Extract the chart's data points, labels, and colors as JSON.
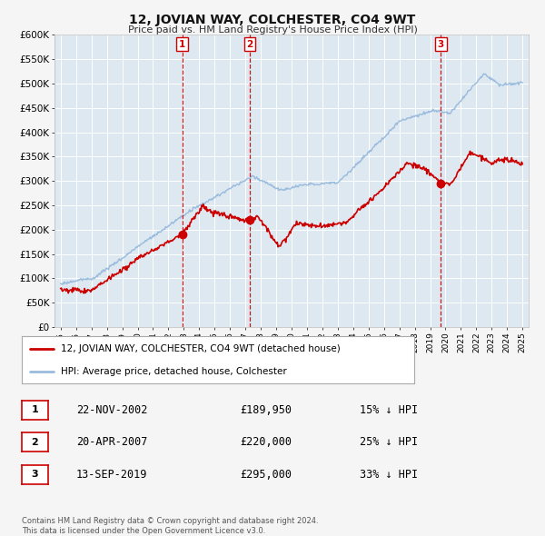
{
  "title": "12, JOVIAN WAY, COLCHESTER, CO4 9WT",
  "subtitle": "Price paid vs. HM Land Registry's House Price Index (HPI)",
  "ylim": [
    0,
    600000
  ],
  "yticks": [
    0,
    50000,
    100000,
    150000,
    200000,
    250000,
    300000,
    350000,
    400000,
    450000,
    500000,
    550000,
    600000
  ],
  "ytick_labels": [
    "£0",
    "£50K",
    "£100K",
    "£150K",
    "£200K",
    "£250K",
    "£300K",
    "£350K",
    "£400K",
    "£450K",
    "£500K",
    "£550K",
    "£600K"
  ],
  "house_color": "#cc0000",
  "hpi_color": "#99bbdd",
  "bg_color": "#f5f5f5",
  "plot_bg_color": "#dde8f0",
  "grid_color": "#ffffff",
  "vline_color": "#cc0000",
  "legend_label_house": "12, JOVIAN WAY, COLCHESTER, CO4 9WT (detached house)",
  "legend_label_hpi": "HPI: Average price, detached house, Colchester",
  "transactions": [
    {
      "num": 1,
      "date": "22-NOV-2002",
      "price": "£189,950",
      "pct": "15% ↓ HPI",
      "year": 2002.9
    },
    {
      "num": 2,
      "date": "20-APR-2007",
      "price": "£220,000",
      "pct": "25% ↓ HPI",
      "year": 2007.3
    },
    {
      "num": 3,
      "date": "13-SEP-2019",
      "price": "£295,000",
      "pct": "33% ↓ HPI",
      "year": 2019.7
    }
  ],
  "transaction_values": [
    189950,
    220000,
    295000
  ],
  "footnote": "Contains HM Land Registry data © Crown copyright and database right 2024.\nThis data is licensed under the Open Government Licence v3.0."
}
